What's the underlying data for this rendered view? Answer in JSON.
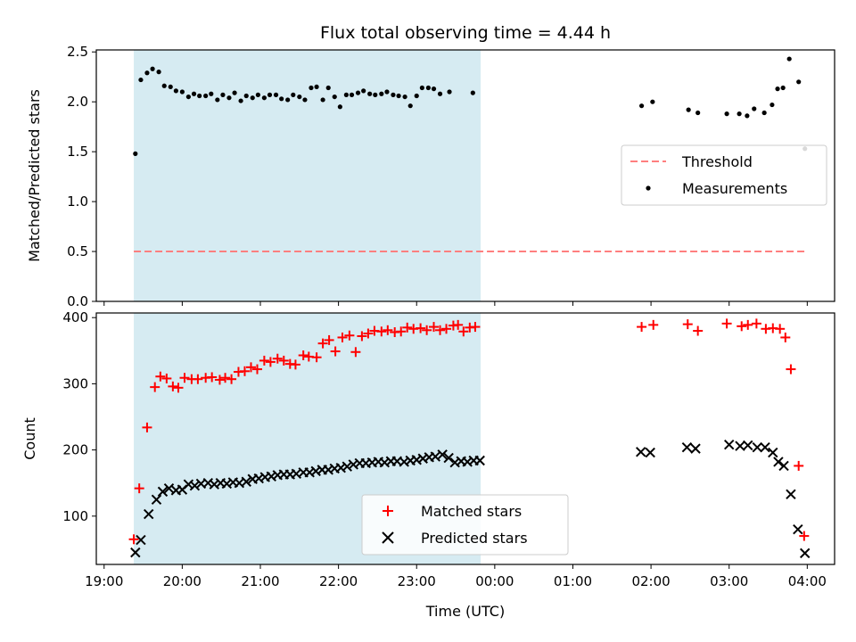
{
  "chart_data": [
    {
      "type": "scatter",
      "title": "Flux total observing time = 4.44 h",
      "ylabel": "Matched/Predicted stars",
      "xlabel": "",
      "x_unit": "hours since 19:00 UTC",
      "xlim": [
        -0.1,
        9.35
      ],
      "ylim": [
        0.0,
        2.52
      ],
      "yticks": [
        0.0,
        0.5,
        1.0,
        1.5,
        2.0,
        2.5
      ],
      "ytick_labels": [
        "0.0",
        "0.5",
        "1.0",
        "1.5",
        "2.0",
        "2.5"
      ],
      "shaded_span": {
        "x": [
          0.38,
          4.82
        ],
        "color": "#add8e6"
      },
      "legend": {
        "position": "center right"
      },
      "series": [
        {
          "name": "Threshold",
          "style": "dashed-line",
          "color": "#ff7f7f",
          "points": [
            [
              0.38,
              0.5
            ],
            [
              8.98,
              0.5
            ]
          ]
        },
        {
          "name": "Measurements",
          "style": "dot",
          "color": "#000000",
          "points": [
            [
              0.4,
              1.48
            ],
            [
              0.47,
              2.22
            ],
            [
              0.55,
              2.29
            ],
            [
              0.62,
              2.33
            ],
            [
              0.7,
              2.3
            ],
            [
              0.77,
              2.16
            ],
            [
              0.85,
              2.15
            ],
            [
              0.92,
              2.11
            ],
            [
              1.0,
              2.1
            ],
            [
              1.08,
              2.05
            ],
            [
              1.15,
              2.08
            ],
            [
              1.22,
              2.06
            ],
            [
              1.3,
              2.06
            ],
            [
              1.37,
              2.08
            ],
            [
              1.45,
              2.02
            ],
            [
              1.52,
              2.07
            ],
            [
              1.6,
              2.04
            ],
            [
              1.67,
              2.09
            ],
            [
              1.75,
              2.01
            ],
            [
              1.82,
              2.06
            ],
            [
              1.9,
              2.04
            ],
            [
              1.97,
              2.07
            ],
            [
              2.05,
              2.04
            ],
            [
              2.12,
              2.07
            ],
            [
              2.2,
              2.07
            ],
            [
              2.27,
              2.03
            ],
            [
              2.35,
              2.02
            ],
            [
              2.42,
              2.07
            ],
            [
              2.5,
              2.05
            ],
            [
              2.57,
              2.02
            ],
            [
              2.65,
              2.14
            ],
            [
              2.72,
              2.15
            ],
            [
              2.8,
              2.02
            ],
            [
              2.87,
              2.14
            ],
            [
              2.95,
              2.05
            ],
            [
              3.02,
              1.95
            ],
            [
              3.1,
              2.07
            ],
            [
              3.17,
              2.07
            ],
            [
              3.25,
              2.09
            ],
            [
              3.32,
              2.11
            ],
            [
              3.4,
              2.08
            ],
            [
              3.47,
              2.07
            ],
            [
              3.55,
              2.08
            ],
            [
              3.62,
              2.1
            ],
            [
              3.7,
              2.07
            ],
            [
              3.77,
              2.06
            ],
            [
              3.85,
              2.05
            ],
            [
              3.92,
              1.96
            ],
            [
              4.0,
              2.06
            ],
            [
              4.07,
              2.14
            ],
            [
              4.15,
              2.14
            ],
            [
              4.22,
              2.13
            ],
            [
              4.3,
              2.08
            ],
            [
              4.42,
              2.1
            ],
            [
              4.72,
              2.09
            ],
            [
              6.88,
              1.96
            ],
            [
              7.02,
              2.0
            ],
            [
              7.48,
              1.92
            ],
            [
              7.6,
              1.89
            ],
            [
              7.97,
              1.88
            ],
            [
              8.13,
              1.88
            ],
            [
              8.23,
              1.86
            ],
            [
              8.32,
              1.93
            ],
            [
              8.45,
              1.89
            ],
            [
              8.55,
              1.97
            ],
            [
              8.62,
              2.13
            ],
            [
              8.69,
              2.14
            ],
            [
              8.77,
              2.43
            ],
            [
              8.89,
              2.2
            ],
            [
              8.97,
              1.53
            ]
          ]
        }
      ]
    },
    {
      "type": "scatter",
      "title": "",
      "xlabel": "Time (UTC)",
      "ylabel": "Count",
      "x_unit": "hours since 19:00 UTC",
      "xlim": [
        -0.1,
        9.35
      ],
      "ylim": [
        27,
        407
      ],
      "xticks": [
        0,
        1,
        2,
        3,
        4,
        5,
        6,
        7,
        8,
        9
      ],
      "xtick_labels": [
        "19:00",
        "20:00",
        "21:00",
        "22:00",
        "23:00",
        "00:00",
        "01:00",
        "02:00",
        "03:00",
        "04:00"
      ],
      "yticks": [
        100,
        200,
        300,
        400
      ],
      "ytick_labels": [
        "100",
        "200",
        "300",
        "400"
      ],
      "shaded_span": {
        "x": [
          0.38,
          4.82
        ],
        "color": "#add8e6"
      },
      "legend": {
        "position": "lower center"
      },
      "series": [
        {
          "name": "Matched stars",
          "style": "plus",
          "color": "#ff0000",
          "points": [
            [
              0.38,
              65
            ],
            [
              0.45,
              142
            ],
            [
              0.55,
              234
            ],
            [
              0.65,
              295
            ],
            [
              0.72,
              311
            ],
            [
              0.8,
              308
            ],
            [
              0.88,
              296
            ],
            [
              0.95,
              294
            ],
            [
              1.03,
              309
            ],
            [
              1.12,
              307
            ],
            [
              1.2,
              307
            ],
            [
              1.3,
              309
            ],
            [
              1.38,
              310
            ],
            [
              1.48,
              306
            ],
            [
              1.55,
              309
            ],
            [
              1.63,
              307
            ],
            [
              1.72,
              318
            ],
            [
              1.8,
              319
            ],
            [
              1.88,
              325
            ],
            [
              1.96,
              322
            ],
            [
              2.05,
              335
            ],
            [
              2.13,
              333
            ],
            [
              2.22,
              338
            ],
            [
              2.3,
              335
            ],
            [
              2.38,
              330
            ],
            [
              2.45,
              329
            ],
            [
              2.55,
              343
            ],
            [
              2.62,
              341
            ],
            [
              2.72,
              340
            ],
            [
              2.8,
              361
            ],
            [
              2.88,
              366
            ],
            [
              2.96,
              349
            ],
            [
              3.05,
              370
            ],
            [
              3.14,
              373
            ],
            [
              3.22,
              348
            ],
            [
              3.3,
              372
            ],
            [
              3.38,
              376
            ],
            [
              3.46,
              380
            ],
            [
              3.55,
              379
            ],
            [
              3.63,
              381
            ],
            [
              3.72,
              378
            ],
            [
              3.8,
              379
            ],
            [
              3.88,
              385
            ],
            [
              3.96,
              383
            ],
            [
              4.05,
              384
            ],
            [
              4.13,
              381
            ],
            [
              4.22,
              386
            ],
            [
              4.3,
              381
            ],
            [
              4.38,
              383
            ],
            [
              4.47,
              388
            ],
            [
              4.53,
              389
            ],
            [
              4.6,
              379
            ],
            [
              4.68,
              385
            ],
            [
              4.75,
              386
            ],
            [
              6.88,
              386
            ],
            [
              7.03,
              389
            ],
            [
              7.47,
              390
            ],
            [
              7.6,
              380
            ],
            [
              7.97,
              391
            ],
            [
              8.16,
              387
            ],
            [
              8.24,
              389
            ],
            [
              8.35,
              391
            ],
            [
              8.47,
              383
            ],
            [
              8.56,
              384
            ],
            [
              8.65,
              383
            ],
            [
              8.72,
              370
            ],
            [
              8.79,
              322
            ],
            [
              8.89,
              176
            ],
            [
              8.96,
              70
            ]
          ]
        },
        {
          "name": "Predicted stars",
          "style": "x",
          "color": "#000000",
          "points": [
            [
              0.4,
              45
            ],
            [
              0.47,
              64
            ],
            [
              0.57,
              103
            ],
            [
              0.67,
              125
            ],
            [
              0.75,
              137
            ],
            [
              0.83,
              142
            ],
            [
              0.92,
              139
            ],
            [
              1.0,
              140
            ],
            [
              1.08,
              148
            ],
            [
              1.16,
              146
            ],
            [
              1.24,
              149
            ],
            [
              1.33,
              150
            ],
            [
              1.41,
              148
            ],
            [
              1.49,
              150
            ],
            [
              1.57,
              149
            ],
            [
              1.65,
              151
            ],
            [
              1.73,
              150
            ],
            [
              1.82,
              152
            ],
            [
              1.9,
              156
            ],
            [
              1.98,
              157
            ],
            [
              2.06,
              159
            ],
            [
              2.14,
              160
            ],
            [
              2.22,
              162
            ],
            [
              2.3,
              163
            ],
            [
              2.38,
              163
            ],
            [
              2.46,
              164
            ],
            [
              2.55,
              166
            ],
            [
              2.63,
              166
            ],
            [
              2.71,
              168
            ],
            [
              2.79,
              170
            ],
            [
              2.87,
              170
            ],
            [
              2.95,
              172
            ],
            [
              3.03,
              173
            ],
            [
              3.11,
              175
            ],
            [
              3.19,
              178
            ],
            [
              3.27,
              180
            ],
            [
              3.35,
              180
            ],
            [
              3.43,
              181
            ],
            [
              3.51,
              182
            ],
            [
              3.59,
              181
            ],
            [
              3.67,
              183
            ],
            [
              3.75,
              183
            ],
            [
              3.84,
              182
            ],
            [
              3.92,
              184
            ],
            [
              4.0,
              185
            ],
            [
              4.08,
              187
            ],
            [
              4.16,
              189
            ],
            [
              4.24,
              190
            ],
            [
              4.33,
              193
            ],
            [
              4.41,
              188
            ],
            [
              4.49,
              181
            ],
            [
              4.57,
              183
            ],
            [
              4.65,
              182
            ],
            [
              4.73,
              184
            ],
            [
              4.81,
              184
            ],
            [
              6.87,
              197
            ],
            [
              6.99,
              196
            ],
            [
              7.46,
              204
            ],
            [
              7.57,
              202
            ],
            [
              8.0,
              208
            ],
            [
              8.14,
              206
            ],
            [
              8.24,
              207
            ],
            [
              8.36,
              204
            ],
            [
              8.46,
              204
            ],
            [
              8.56,
              196
            ],
            [
              8.63,
              182
            ],
            [
              8.7,
              176
            ],
            [
              8.79,
              133
            ],
            [
              8.88,
              80
            ],
            [
              8.97,
              44
            ]
          ]
        }
      ]
    }
  ]
}
